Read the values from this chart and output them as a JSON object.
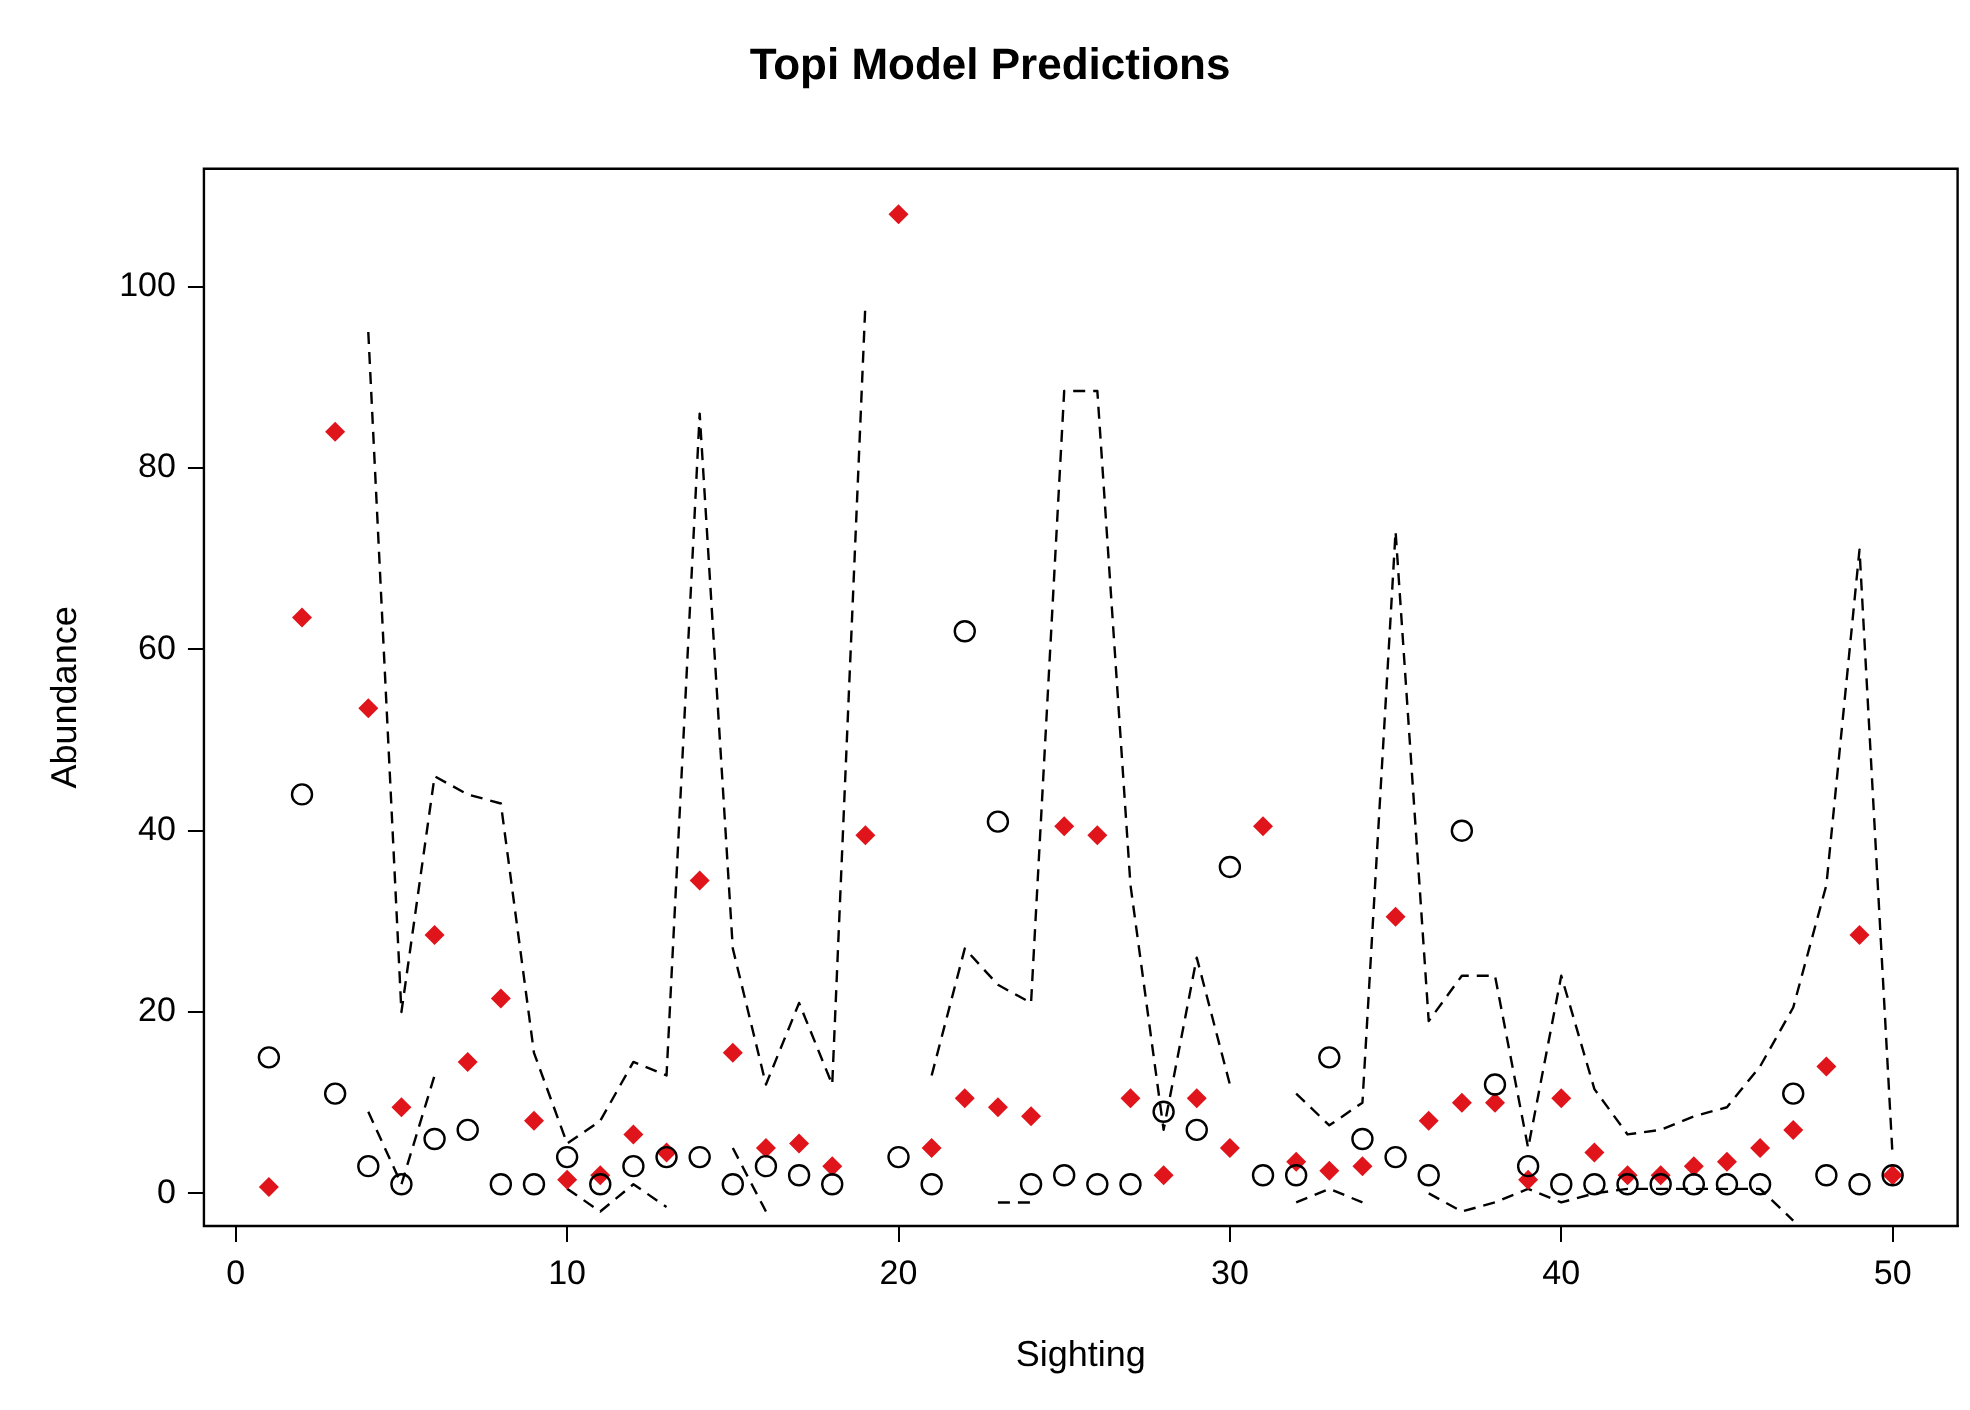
{
  "chart_data": {
    "type": "scatter",
    "title": "Topi Model Predictions",
    "xlabel": "Sighting",
    "ylabel": "Abundance",
    "x": [
      1,
      2,
      3,
      4,
      5,
      6,
      7,
      8,
      9,
      10,
      11,
      12,
      13,
      14,
      15,
      16,
      17,
      18,
      19,
      20,
      21,
      22,
      23,
      24,
      25,
      26,
      27,
      28,
      29,
      30,
      31,
      32,
      33,
      34,
      35,
      36,
      37,
      38,
      39,
      40,
      41,
      42,
      43,
      44,
      45,
      46,
      47,
      48,
      49,
      50
    ],
    "xlim": [
      -0.96,
      51.96
    ],
    "xticks": [
      0,
      10,
      20,
      30,
      40,
      50
    ],
    "ylim": [
      -3.6,
      113
    ],
    "yticks": [
      0,
      20,
      40,
      60,
      80,
      100
    ],
    "grid": false,
    "legend": false,
    "series": [
      {
        "type": "line",
        "color": "#000000",
        "marker": "none",
        "line_style": "dashed",
        "values": [
          null,
          null,
          null,
          95,
          20,
          46,
          44,
          43,
          15.5,
          5.5,
          8,
          14.5,
          13,
          86,
          27,
          12,
          21,
          12,
          98,
          null,
          13,
          27,
          23,
          21,
          88.5,
          88.5,
          34,
          7,
          26,
          12,
          null,
          11,
          7.5,
          10,
          73,
          19,
          24,
          24,
          5,
          24,
          11.5,
          6.5,
          7,
          8.5,
          9.5,
          14,
          20.5,
          34,
          71,
          4
        ]
      },
      {
        "type": "line",
        "color": "#000000",
        "marker": "none",
        "line_style": "dashed",
        "values": [
          null,
          null,
          null,
          9,
          1,
          13,
          null,
          null,
          null,
          0.5,
          -2,
          1,
          -1.5,
          null,
          5,
          -2,
          null,
          null,
          null,
          null,
          null,
          null,
          -1,
          -1,
          null,
          null,
          null,
          null,
          null,
          null,
          null,
          -1,
          0.5,
          -1,
          null,
          0,
          -2,
          -1,
          0.5,
          -1,
          0,
          0.5,
          0.5,
          0.5,
          0.5,
          0.5,
          -3,
          null,
          null,
          null
        ]
      },
      {
        "color": "#000000",
        "marker": "circle",
        "values": [
          15,
          44,
          11,
          3,
          1,
          6,
          7,
          1,
          1,
          4,
          1,
          3,
          4,
          4,
          1,
          3,
          2,
          1,
          null,
          4,
          1,
          62,
          41,
          1,
          2,
          1,
          1,
          9,
          7,
          36,
          2,
          2,
          15,
          6,
          4,
          2,
          40,
          12,
          3,
          1,
          1,
          1,
          1,
          1,
          1,
          1,
          11,
          2,
          1,
          2
        ]
      },
      {
        "color": "#e0141b",
        "marker": "diamond",
        "values": [
          0.7,
          63.5,
          84,
          53.5,
          9.5,
          28.5,
          14.5,
          21.5,
          8,
          1.5,
          2,
          6.5,
          4.5,
          34.5,
          15.5,
          5,
          5.5,
          3,
          39.5,
          108,
          5,
          10.5,
          9.5,
          8.5,
          40.5,
          39.5,
          10.5,
          2,
          10.5,
          5,
          40.5,
          3.5,
          2.5,
          3,
          30.5,
          8,
          10,
          10,
          1.5,
          10.5,
          4.5,
          2,
          2,
          3,
          3.5,
          5,
          7,
          14,
          28.5,
          2
        ]
      }
    ]
  }
}
